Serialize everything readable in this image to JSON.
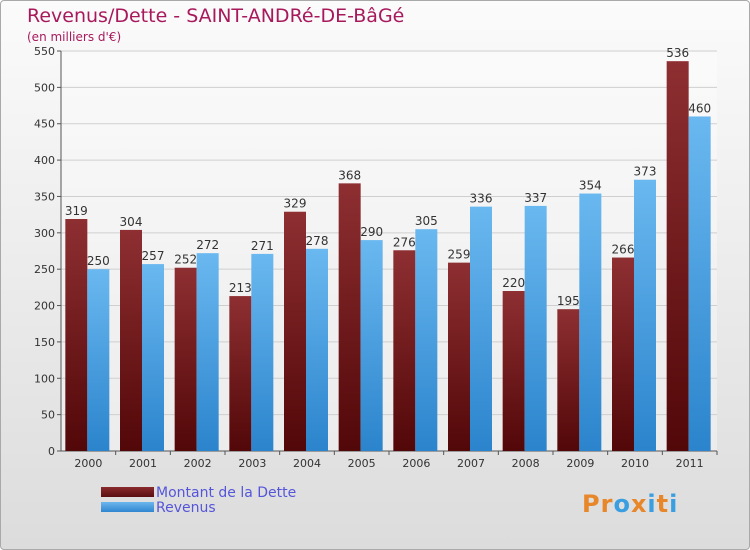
{
  "chart_data": {
    "type": "bar",
    "title": "Revenus/Dette - SAINT-ANDRé-DE-BâGé",
    "subtitle": "(en milliers d'€)",
    "categories": [
      "2000",
      "2001",
      "2002",
      "2003",
      "2004",
      "2005",
      "2006",
      "2007",
      "2008",
      "2009",
      "2010",
      "2011"
    ],
    "series": [
      {
        "name": "Montant de la Dette",
        "values": [
          319,
          304,
          252,
          213,
          329,
          368,
          276,
          259,
          220,
          195,
          266,
          536
        ],
        "color": "#7a1f22"
      },
      {
        "name": "Revenus",
        "values": [
          250,
          257,
          272,
          271,
          278,
          290,
          305,
          336,
          337,
          354,
          373,
          460
        ],
        "color": "#4fa3e3"
      }
    ],
    "ylim": [
      0,
      550
    ],
    "yticks": [
      0,
      50,
      100,
      150,
      200,
      250,
      300,
      350,
      400,
      450,
      500,
      550
    ],
    "grid": true,
    "legend": "bottom-left"
  },
  "logo": {
    "text": "Proxiti",
    "colors": [
      "#e8862a",
      "#e8862a",
      "#3a9ee0",
      "#e8862a",
      "#3a9ee0",
      "#e8862a",
      "#3a9ee0"
    ]
  }
}
